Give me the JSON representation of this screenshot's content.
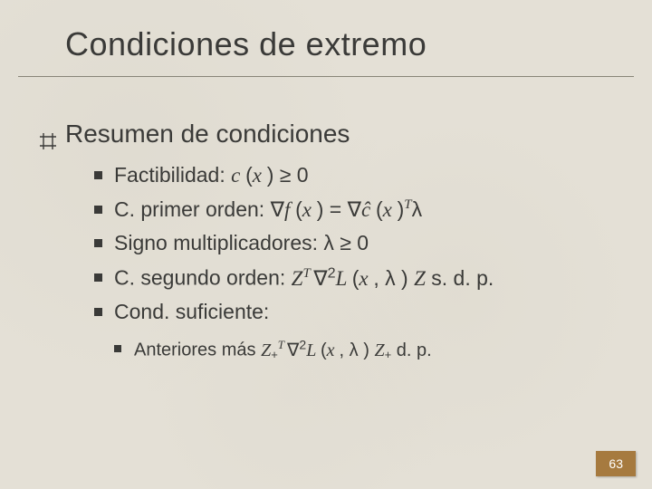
{
  "title": "Condiciones de extremo",
  "lvl1": "Resumen de condiciones",
  "items": [
    {
      "label": "Factibilidad:   ",
      "math_html": "<span class='ital'>c </span>(<span class='ital'>x </span>) ≥ 0"
    },
    {
      "label": "C. primer orden:   ",
      "math_html": "∇<span class='ital'>f </span>(<span class='ital'>x </span>) = ∇<span class='ital'>ĉ </span>(<span class='ital'>x </span>)<span class='sup'>T</span>λ"
    },
    {
      "label": "Signo multiplicadores:   ",
      "math_html": "λ ≥ 0"
    },
    {
      "label": "C. segundo orden:  ",
      "math_html": "<span class='ital'>Z</span><span class='sup'>T </span>∇<sup style='font-size:0.7em'>2</sup><span class='ital'>L </span>(<span class='ital'>x </span>, λ ) <span class='ital'>Z</span>   s. d. p."
    },
    {
      "label": "Cond. suficiente:",
      "math_html": ""
    }
  ],
  "sub_item": {
    "label": "Anteriores más    ",
    "math_html": "<span class='ital'>Z</span><span class='sub'>+</span><span class='sup'>T </span>∇<sup style='font-size:0.7em'>2</sup><span class='ital'>L </span>(<span class='ital'>x </span>, λ ) <span class='ital'>Z</span><span class='sub'>+</span>   d. p."
  },
  "page_number": "63",
  "colors": {
    "background": "#e4e0d6",
    "text": "#3a3a38",
    "underline": "#888578",
    "pagenum_bg": "#a67a3f",
    "pagenum_text": "#ffffff"
  }
}
